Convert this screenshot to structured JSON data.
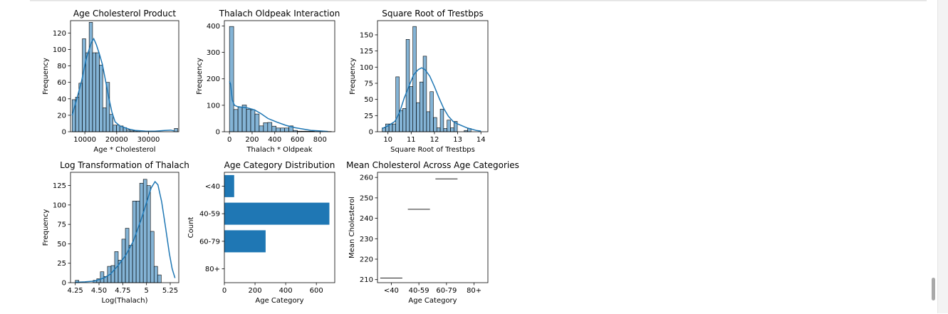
{
  "chart_data": [
    {
      "type": "histogram",
      "title": "Age Cholesterol Product",
      "xlabel": "Age * Cholesterol",
      "ylabel": "Frequency",
      "xlim": [
        5500,
        39500
      ],
      "ylim": [
        0,
        135
      ],
      "xticks": [
        10000,
        20000,
        30000
      ],
      "yticks": [
        0,
        20,
        40,
        60,
        80,
        100,
        120
      ],
      "bin_start": 6000,
      "bin_width": 1070,
      "counts": [
        39,
        42,
        59,
        113,
        96,
        133,
        96,
        96,
        81,
        29,
        60,
        21,
        8,
        8,
        7,
        5,
        2,
        1,
        1,
        1,
        0,
        0,
        0,
        0,
        0,
        0,
        0,
        0,
        0,
        0,
        4
      ],
      "kde": [
        [
          6000,
          20
        ],
        [
          7500,
          40
        ],
        [
          9000,
          62
        ],
        [
          10500,
          90
        ],
        [
          12000,
          108
        ],
        [
          12800,
          113
        ],
        [
          13600,
          106
        ],
        [
          14600,
          94
        ],
        [
          15500,
          82
        ],
        [
          16500,
          62
        ],
        [
          17500,
          42
        ],
        [
          18500,
          24
        ],
        [
          19500,
          12
        ],
        [
          21000,
          7
        ],
        [
          22500,
          5
        ],
        [
          24000,
          3
        ],
        [
          26000,
          1.5
        ],
        [
          29000,
          0.8
        ],
        [
          32000,
          0.6
        ],
        [
          35000,
          1.5
        ],
        [
          37000,
          2
        ],
        [
          38000,
          1
        ]
      ],
      "color": "#1f77b4"
    },
    {
      "type": "histogram",
      "title": "Thalach Oldpeak Interaction",
      "xlabel": "Thalach * Oldpeak",
      "ylabel": "Frequency",
      "xlim": [
        -45,
        930
      ],
      "ylim": [
        0,
        420
      ],
      "xticks": [
        0,
        200,
        400,
        600,
        800
      ],
      "yticks": [
        0,
        100,
        200,
        300,
        400
      ],
      "bin_start": 0,
      "bin_width": 37.5,
      "counts": [
        398,
        84,
        93,
        101,
        85,
        83,
        67,
        22,
        34,
        35,
        21,
        14,
        14,
        14,
        22,
        5,
        2,
        2,
        2,
        2,
        1,
        1,
        0,
        1
      ],
      "kde": [
        [
          0,
          190
        ],
        [
          10,
          180
        ],
        [
          25,
          120
        ],
        [
          45,
          100
        ],
        [
          70,
          95
        ],
        [
          110,
          93
        ],
        [
          160,
          90
        ],
        [
          220,
          83
        ],
        [
          280,
          68
        ],
        [
          340,
          50
        ],
        [
          420,
          36
        ],
        [
          500,
          24
        ],
        [
          580,
          15
        ],
        [
          650,
          10
        ],
        [
          720,
          5
        ],
        [
          800,
          3
        ],
        [
          870,
          1
        ]
      ],
      "color": "#1f77b4"
    },
    {
      "type": "histogram",
      "title": "Square Root of Trestbps",
      "xlabel": "Square Root of Trestbps",
      "ylabel": "Frequency",
      "xlim": [
        9.55,
        14.3
      ],
      "ylim": [
        0,
        172
      ],
      "xticks": [
        10,
        11,
        12,
        13,
        14
      ],
      "yticks": [
        0,
        25,
        50,
        75,
        100,
        125,
        150
      ],
      "bin_start": 9.75,
      "bin_width": 0.147,
      "counts": [
        6,
        12,
        12,
        12,
        85,
        33,
        36,
        143,
        70,
        163,
        45,
        77,
        117,
        31,
        62,
        22,
        6,
        35,
        5,
        18,
        6,
        16,
        0,
        0,
        2,
        5
      ],
      "kde": [
        [
          9.75,
          5
        ],
        [
          10,
          9
        ],
        [
          10.3,
          16
        ],
        [
          10.5,
          30
        ],
        [
          10.7,
          52
        ],
        [
          10.9,
          70
        ],
        [
          11.1,
          88
        ],
        [
          11.3,
          96
        ],
        [
          11.45,
          99
        ],
        [
          11.6,
          96
        ],
        [
          11.8,
          86
        ],
        [
          12,
          70
        ],
        [
          12.2,
          52
        ],
        [
          12.4,
          36
        ],
        [
          12.6,
          24
        ],
        [
          12.8,
          16
        ],
        [
          13,
          12
        ],
        [
          13.2,
          9
        ],
        [
          13.4,
          6
        ],
        [
          13.6,
          4
        ],
        [
          13.8,
          2
        ],
        [
          14,
          1
        ]
      ],
      "color": "#1f77b4"
    },
    {
      "type": "histogram",
      "title": "Log Transformation of Thalach",
      "xlabel": "Log(Thalach)",
      "ylabel": "Frequency",
      "xlim": [
        4.2,
        5.34
      ],
      "ylim": [
        0,
        142
      ],
      "xticks": [
        4.25,
        4.5,
        4.75,
        5.0,
        5.25
      ],
      "yticks": [
        0,
        25,
        50,
        75,
        100,
        125
      ],
      "bin_start": 4.25,
      "bin_width": 0.0377,
      "counts": [
        3,
        0,
        0,
        0,
        0,
        3,
        5,
        14,
        8,
        21,
        22,
        40,
        29,
        56,
        70,
        48,
        105,
        105,
        128,
        133,
        125,
        66,
        21,
        10
      ],
      "kde": [
        [
          4.25,
          0.5
        ],
        [
          4.35,
          1
        ],
        [
          4.45,
          2
        ],
        [
          4.55,
          6
        ],
        [
          4.62,
          11
        ],
        [
          4.7,
          22
        ],
        [
          4.78,
          35
        ],
        [
          4.86,
          53
        ],
        [
          4.94,
          80
        ],
        [
          5.0,
          103
        ],
        [
          5.05,
          122
        ],
        [
          5.09,
          130
        ],
        [
          5.12,
          126
        ],
        [
          5.16,
          104
        ],
        [
          5.2,
          72
        ],
        [
          5.24,
          38
        ],
        [
          5.27,
          18
        ],
        [
          5.3,
          6
        ]
      ],
      "color": "#1f77b4"
    },
    {
      "type": "bar",
      "orientation": "horizontal",
      "title": "Age Category Distribution",
      "xlabel": "Age Category",
      "ylabel": "Count",
      "categories": [
        "<40",
        "40-59",
        "60-79",
        "80+"
      ],
      "values": [
        64,
        685,
        269,
        0
      ],
      "xlim": [
        0,
        720
      ],
      "xticks": [
        0,
        200,
        400,
        600
      ],
      "color": "#1f77b4"
    },
    {
      "type": "line",
      "title": "Mean Cholesterol Across Age Categories",
      "xlabel": "Age Category",
      "ylabel": "Mean Cholesterol",
      "categories": [
        "<40",
        "40-59",
        "60-79",
        "80+"
      ],
      "values": [
        210.8,
        244.4,
        259.3,
        null
      ],
      "ylim": [
        208.5,
        262.5
      ],
      "yticks": [
        210,
        220,
        230,
        240,
        250,
        260
      ],
      "color": "#000000"
    }
  ]
}
